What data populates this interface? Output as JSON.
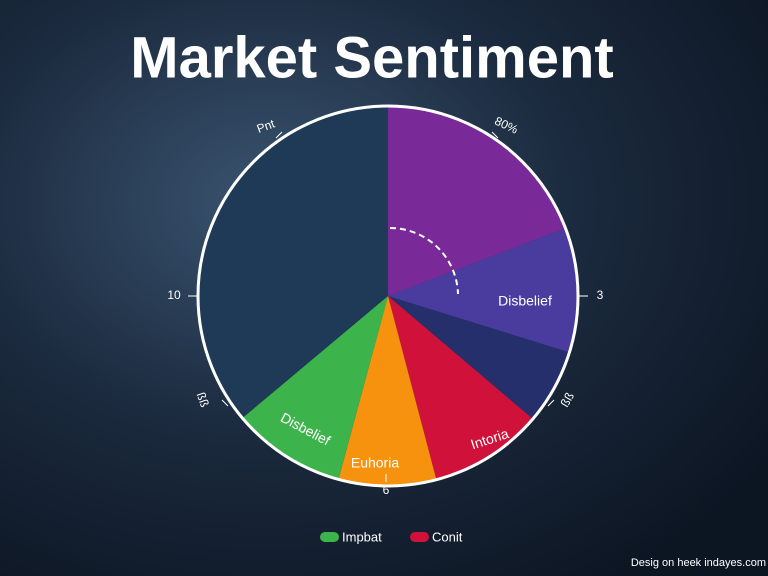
{
  "chart_data": {
    "type": "pie",
    "title": "Market Sentiment",
    "categories": [
      null,
      "Disbelief",
      null,
      "Intoria",
      "Euhoria",
      "Disbelief",
      null
    ],
    "values": [
      19.2,
      10.6,
      6.4,
      9.7,
      8.3,
      9.7,
      36.1
    ],
    "colors": [
      "#7a2a98",
      "#4a3b9f",
      "#252f6c",
      "#d0123b",
      "#f7920f",
      "#3db44b",
      "#1f3a56"
    ],
    "outer_labels": [
      "Pnt",
      "80%",
      "3",
      "ßß",
      "6",
      "ßß",
      "10"
    ],
    "legend": [
      {
        "name": "Impbat",
        "color": "#3db44b"
      },
      {
        "name": "Conit",
        "color": "#d0123b"
      }
    ],
    "footer": "Desig on heek indayes.com"
  }
}
